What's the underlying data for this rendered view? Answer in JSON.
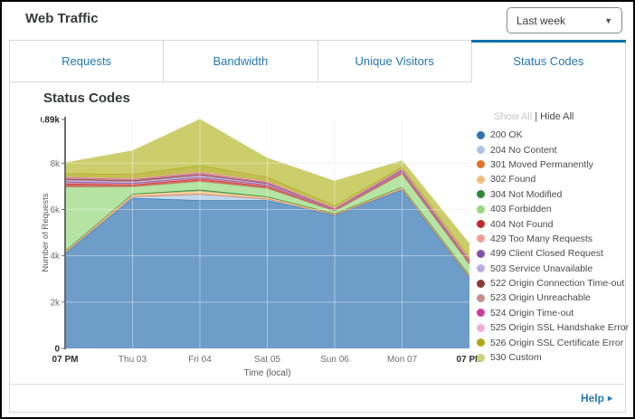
{
  "header": {
    "title": "Web Traffic",
    "time_range_value": "Last week"
  },
  "tabs": [
    {
      "label": "Requests",
      "active": false
    },
    {
      "label": "Bandwidth",
      "active": false
    },
    {
      "label": "Unique Visitors",
      "active": false
    },
    {
      "label": "Status Codes",
      "active": true
    }
  ],
  "legend": {
    "show_all_label": "Show All",
    "separator": "|",
    "hide_all_label": "Hide All"
  },
  "footer": {
    "help_label": "Help",
    "help_arrow": "▸"
  },
  "colors": {
    "accent_blue": "#1170af",
    "tab_text": "#2577ae",
    "axis": "#6b6b6b",
    "grid": "#ececec"
  },
  "chart_data": {
    "type": "area",
    "stacked": true,
    "title": "Status Codes",
    "xlabel": "Time (local)",
    "ylabel": "Number of Requests",
    "legend_position": "right",
    "grid": true,
    "x": [
      "07 PM",
      "Thu 03",
      "Fri 04",
      "Sat 05",
      "Sun 06",
      "Mon 07",
      "07 PM"
    ],
    "x_bold": [
      true,
      false,
      false,
      false,
      false,
      false,
      true
    ],
    "y_ticks": [
      "0",
      "2k",
      "4k",
      "6k",
      "8k",
      "9.89k"
    ],
    "y_tick_values": [
      0,
      2000,
      4000,
      6000,
      8000,
      9890
    ],
    "y_max": 9890,
    "series": [
      {
        "name": "200 OK",
        "color": "#3073ae",
        "fill": "#6e9dc9",
        "values": [
          4100,
          6500,
          6400,
          6400,
          5750,
          6850,
          3050
        ]
      },
      {
        "name": "204 No Content",
        "color": "#abc6e4",
        "fill": "#c3d8ee",
        "values": [
          30,
          50,
          250,
          50,
          20,
          30,
          30
        ]
      },
      {
        "name": "301 Moved Permanently",
        "color": "#e2722f",
        "fill": "#eb9a68",
        "values": [
          20,
          20,
          30,
          20,
          15,
          20,
          20
        ]
      },
      {
        "name": "302 Found",
        "color": "#f2bc80",
        "fill": "#f6d2a8",
        "values": [
          50,
          80,
          120,
          60,
          30,
          50,
          50
        ]
      },
      {
        "name": "304 Not Modified",
        "color": "#2d8a39",
        "fill": "#69ab6f",
        "values": [
          20,
          30,
          60,
          30,
          15,
          30,
          20
        ]
      },
      {
        "name": "403 Forbidden",
        "color": "#96d87e",
        "fill": "#b6e4a5",
        "values": [
          2750,
          300,
          350,
          350,
          100,
          550,
          450
        ]
      },
      {
        "name": "404 Not Found",
        "color": "#c32b29",
        "fill": "#d56a67",
        "values": [
          150,
          100,
          120,
          100,
          50,
          60,
          80
        ]
      },
      {
        "name": "429 Too Many Requests",
        "color": "#f29e98",
        "fill": "#f6bcb8",
        "values": [
          30,
          20,
          30,
          20,
          10,
          20,
          20
        ]
      },
      {
        "name": "499 Client Closed Request",
        "color": "#8450a8",
        "fill": "#a77fc1",
        "values": [
          60,
          50,
          50,
          40,
          20,
          40,
          30
        ]
      },
      {
        "name": "503 Service Unavailable",
        "color": "#bcaede",
        "fill": "#d0c6e8",
        "values": [
          60,
          50,
          60,
          40,
          20,
          40,
          30
        ]
      },
      {
        "name": "522 Origin Connection Time-out",
        "color": "#8a3b34",
        "fill": "#ac6f6a",
        "values": [
          50,
          50,
          40,
          30,
          10,
          20,
          20
        ]
      },
      {
        "name": "523 Origin Unreachable",
        "color": "#c28f8a",
        "fill": "#d4b0ac",
        "values": [
          50,
          40,
          40,
          30,
          10,
          20,
          20
        ]
      },
      {
        "name": "524 Origin Time-out",
        "color": "#ca3f9b",
        "fill": "#d973b4",
        "values": [
          20,
          20,
          30,
          20,
          10,
          20,
          20
        ]
      },
      {
        "name": "525 Origin SSL Handshake Error",
        "color": "#f2aed2",
        "fill": "#f6c6df",
        "values": [
          20,
          20,
          30,
          20,
          10,
          20,
          20
        ]
      },
      {
        "name": "526 Origin SSL Certificate Error",
        "color": "#b0a818",
        "fill": "#c4bd53",
        "values": [
          150,
          200,
          300,
          200,
          100,
          80,
          100
        ]
      },
      {
        "name": "530 Custom",
        "color": "#cdd175",
        "fill": "#cbce6b",
        "values": [
          450,
          1000,
          1980,
          800,
          1050,
          250,
          550
        ]
      }
    ]
  }
}
